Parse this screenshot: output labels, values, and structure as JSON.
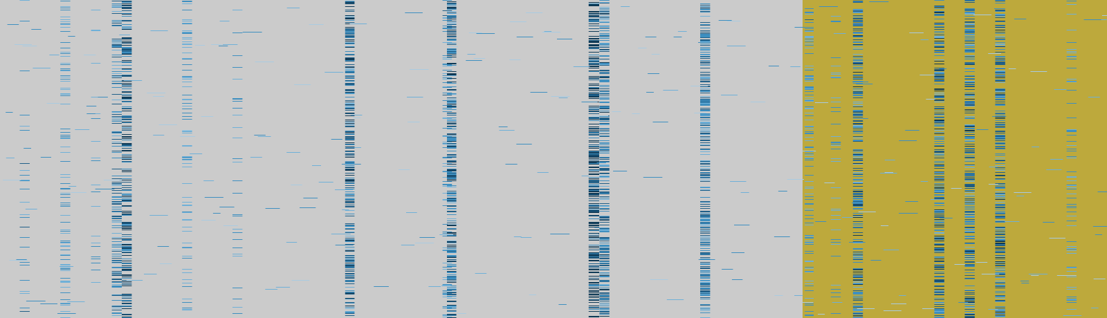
{
  "chart_data": {
    "type": "heatmap",
    "title": "",
    "xlabel": "",
    "ylabel": "",
    "grid": false,
    "legend": "none",
    "colors": {
      "background": "#cbcbcb",
      "highlight_band": "#bda93c",
      "scale": [
        "#a9cbe1",
        "#6fb0d8",
        "#3e8fc0",
        "#205f88",
        "#0f3a56"
      ]
    },
    "rows": 460,
    "highlighted_column_range": [
      0.725,
      1.0
    ],
    "column_profiles": [
      {
        "center": 0.0415,
        "width": 0.0095,
        "density": 0.01,
        "intensity": 0.35
      },
      {
        "center": 0.0223,
        "width": 0.009,
        "density": 0.1,
        "intensity": 0.45
      },
      {
        "center": 0.059,
        "width": 0.009,
        "density": 0.38,
        "intensity": 0.4
      },
      {
        "center": 0.0865,
        "width": 0.0085,
        "density": 0.07,
        "intensity": 0.35
      },
      {
        "center": 0.1055,
        "width": 0.009,
        "density": 0.58,
        "intensity": 0.55
      },
      {
        "center": 0.1145,
        "width": 0.009,
        "density": 0.9,
        "intensity": 0.7
      },
      {
        "center": 0.169,
        "width": 0.009,
        "density": 0.3,
        "intensity": 0.35
      },
      {
        "center": 0.2145,
        "width": 0.009,
        "density": 0.14,
        "intensity": 0.4
      },
      {
        "center": 0.316,
        "width": 0.0085,
        "density": 1.0,
        "intensity": 0.62
      },
      {
        "center": 0.404,
        "width": 0.0085,
        "density": 0.38,
        "intensity": 0.42
      },
      {
        "center": 0.408,
        "width": 0.0085,
        "density": 0.92,
        "intensity": 0.64
      },
      {
        "center": 0.5365,
        "width": 0.0095,
        "density": 1.0,
        "intensity": 0.86
      },
      {
        "center": 0.546,
        "width": 0.009,
        "density": 0.96,
        "intensity": 0.58
      },
      {
        "center": 0.637,
        "width": 0.009,
        "density": 0.95,
        "intensity": 0.55
      },
      {
        "center": 0.731,
        "width": 0.008,
        "density": 0.45,
        "intensity": 0.42
      },
      {
        "center": 0.755,
        "width": 0.009,
        "density": 0.16,
        "intensity": 0.4
      },
      {
        "center": 0.775,
        "width": 0.009,
        "density": 0.88,
        "intensity": 0.6
      },
      {
        "center": 0.8485,
        "width": 0.009,
        "density": 0.9,
        "intensity": 0.62
      },
      {
        "center": 0.876,
        "width": 0.009,
        "density": 1.0,
        "intensity": 0.58
      },
      {
        "center": 0.9035,
        "width": 0.009,
        "density": 1.0,
        "intensity": 0.6
      },
      {
        "center": 0.968,
        "width": 0.009,
        "density": 0.3,
        "intensity": 0.38
      }
    ],
    "background_noise_density": 0.004
  }
}
